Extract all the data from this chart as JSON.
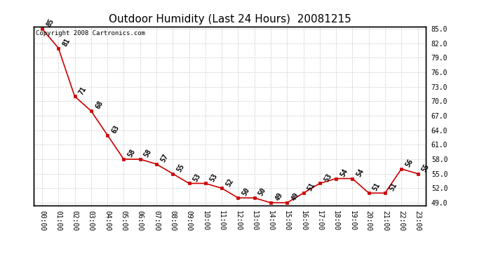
{
  "title": "Outdoor Humidity (Last 24 Hours)  20081215",
  "copyright": "Copyright 2008 Cartronics.com",
  "x_labels": [
    "00:00",
    "01:00",
    "02:00",
    "03:00",
    "04:00",
    "05:00",
    "06:00",
    "07:00",
    "08:00",
    "09:00",
    "10:00",
    "11:00",
    "12:00",
    "13:00",
    "14:00",
    "15:00",
    "16:00",
    "17:00",
    "18:00",
    "19:00",
    "20:00",
    "21:00",
    "22:00",
    "23:00"
  ],
  "y_values": [
    85,
    81,
    71,
    68,
    63,
    58,
    58,
    57,
    55,
    53,
    53,
    52,
    50,
    50,
    49,
    49,
    51,
    53,
    54,
    54,
    51,
    51,
    56,
    55
  ],
  "ylim_min": 48.5,
  "ylim_max": 85.5,
  "yticks": [
    49.0,
    52.0,
    55.0,
    58.0,
    61.0,
    64.0,
    67.0,
    70.0,
    73.0,
    76.0,
    79.0,
    82.0,
    85.0
  ],
  "line_color": "#cc0000",
  "marker_color": "#cc0000",
  "bg_color": "#ffffff",
  "grid_color": "#cccccc",
  "title_fontsize": 11,
  "label_fontsize": 7,
  "tick_fontsize": 7,
  "copyright_fontsize": 6.5,
  "annotation_rotation": 60
}
